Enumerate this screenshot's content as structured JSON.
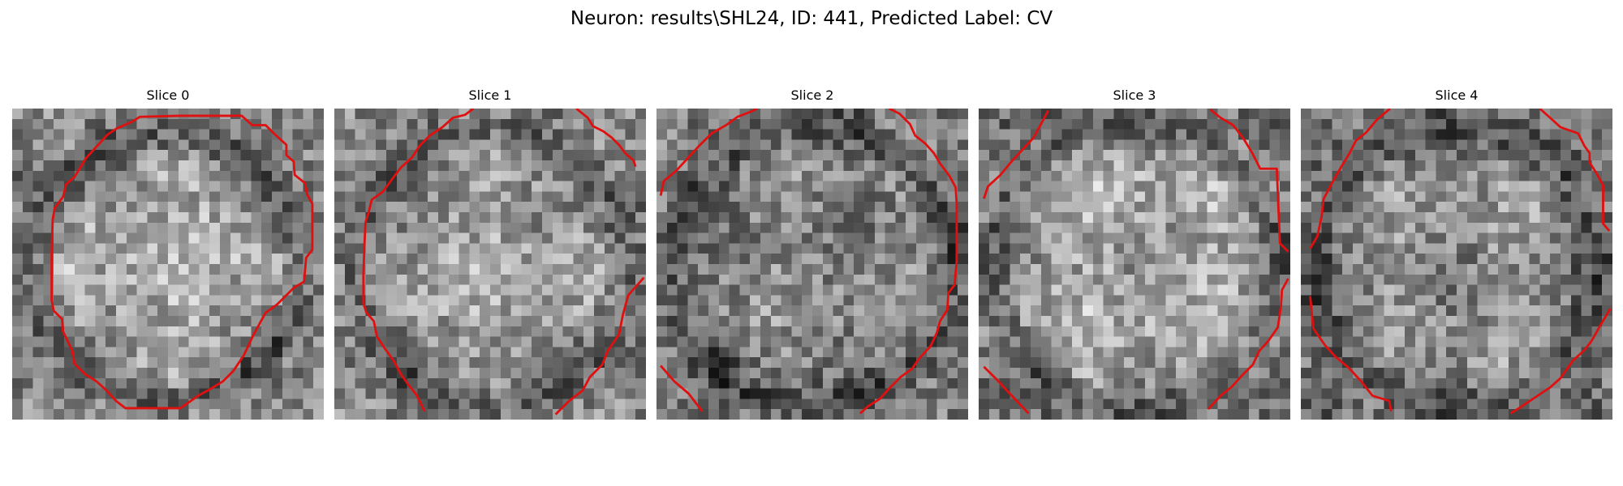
{
  "figure": {
    "title": "Neuron: results\\SHL24, ID: 441, Predicted Label: CV"
  },
  "contour_color": "#e01010",
  "panels": [
    {
      "title": "Slice 0"
    },
    {
      "title": "Slice 1"
    },
    {
      "title": "Slice 2"
    },
    {
      "title": "Slice 3"
    },
    {
      "title": "Slice 4"
    }
  ]
}
